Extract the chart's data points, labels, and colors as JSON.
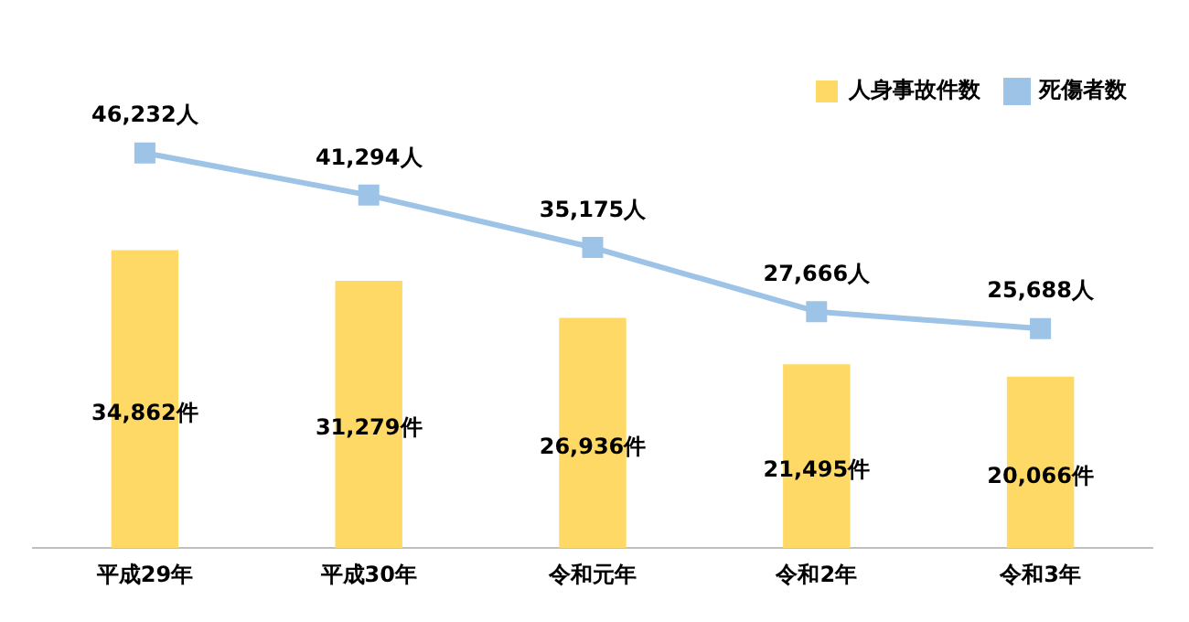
{
  "chart_data": {
    "type": "bar",
    "categories": [
      "平成29年",
      "平成30年",
      "令和元年",
      "令和2年",
      "令和3年"
    ],
    "series": [
      {
        "name": "人身事故件数",
        "color": "#ffd966",
        "values": [
          34862,
          31279,
          26936,
          21495,
          20066
        ],
        "value_labels": [
          "34,862件",
          "31,279件",
          "26,936件",
          "21,495件",
          "20,066件"
        ]
      },
      {
        "name": "死傷者数",
        "type": "line",
        "color": "#9dc3e6",
        "values": [
          46232,
          41294,
          35175,
          27666,
          25688
        ],
        "value_labels": [
          "46,232人",
          "41,294人",
          "35,175人",
          "27,666人",
          "25,688人"
        ],
        "marker": "square"
      }
    ],
    "tick_labels": "x",
    "grid": false,
    "legend": "top right"
  }
}
